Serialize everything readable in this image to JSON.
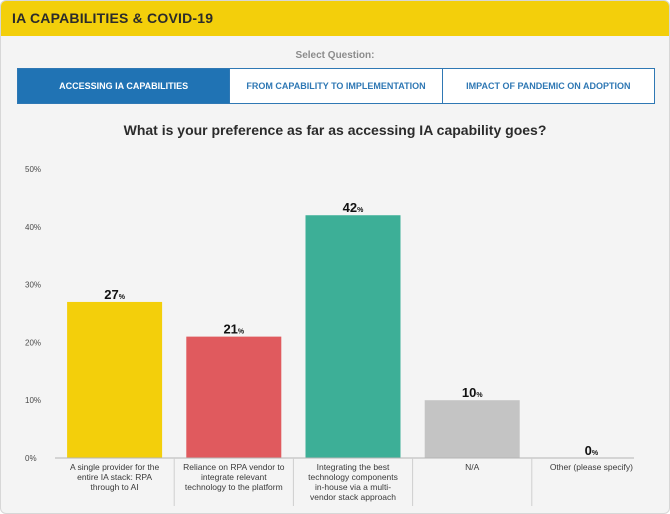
{
  "header": {
    "title": "IA CAPABILITIES & COVID-19"
  },
  "selector": {
    "label": "Select Question:"
  },
  "tabs": [
    {
      "label": "ACCESSING IA CAPABILITIES",
      "active": true
    },
    {
      "label": "FROM CAPABILITY TO IMPLEMENTATION",
      "active": false
    },
    {
      "label": "IMPACT OF PANDEMIC ON ADOPTION",
      "active": false
    }
  ],
  "colors": {
    "header": "#f3cf0b",
    "tab_active": "#2073b4",
    "tab_border": "#2f78b4"
  },
  "chart_data": {
    "type": "bar",
    "title": "What is your preference as far as accessing IA capability goes?",
    "value_suffix": "%",
    "ylim": [
      0,
      50
    ],
    "yticks": [
      "0%",
      "10%",
      "20%",
      "30%",
      "40%",
      "50%"
    ],
    "grid": false,
    "categories": [
      [
        "A single provider for the",
        "entire IA stack: RPA",
        "through to AI"
      ],
      [
        "Reliance on RPA vendor to",
        "integrate relevant",
        "technology to the platform"
      ],
      [
        "Integrating the best",
        "technology components",
        "in-house via a multi-",
        "vendor stack approach"
      ],
      [
        "N/A"
      ],
      [
        "Other (please specify)"
      ]
    ],
    "values": [
      27,
      21,
      42,
      10,
      0
    ],
    "bar_colors": [
      "#f3cf0b",
      "#e05a5e",
      "#3daf97",
      "#c4c4c4",
      "#c4c4c4"
    ]
  }
}
